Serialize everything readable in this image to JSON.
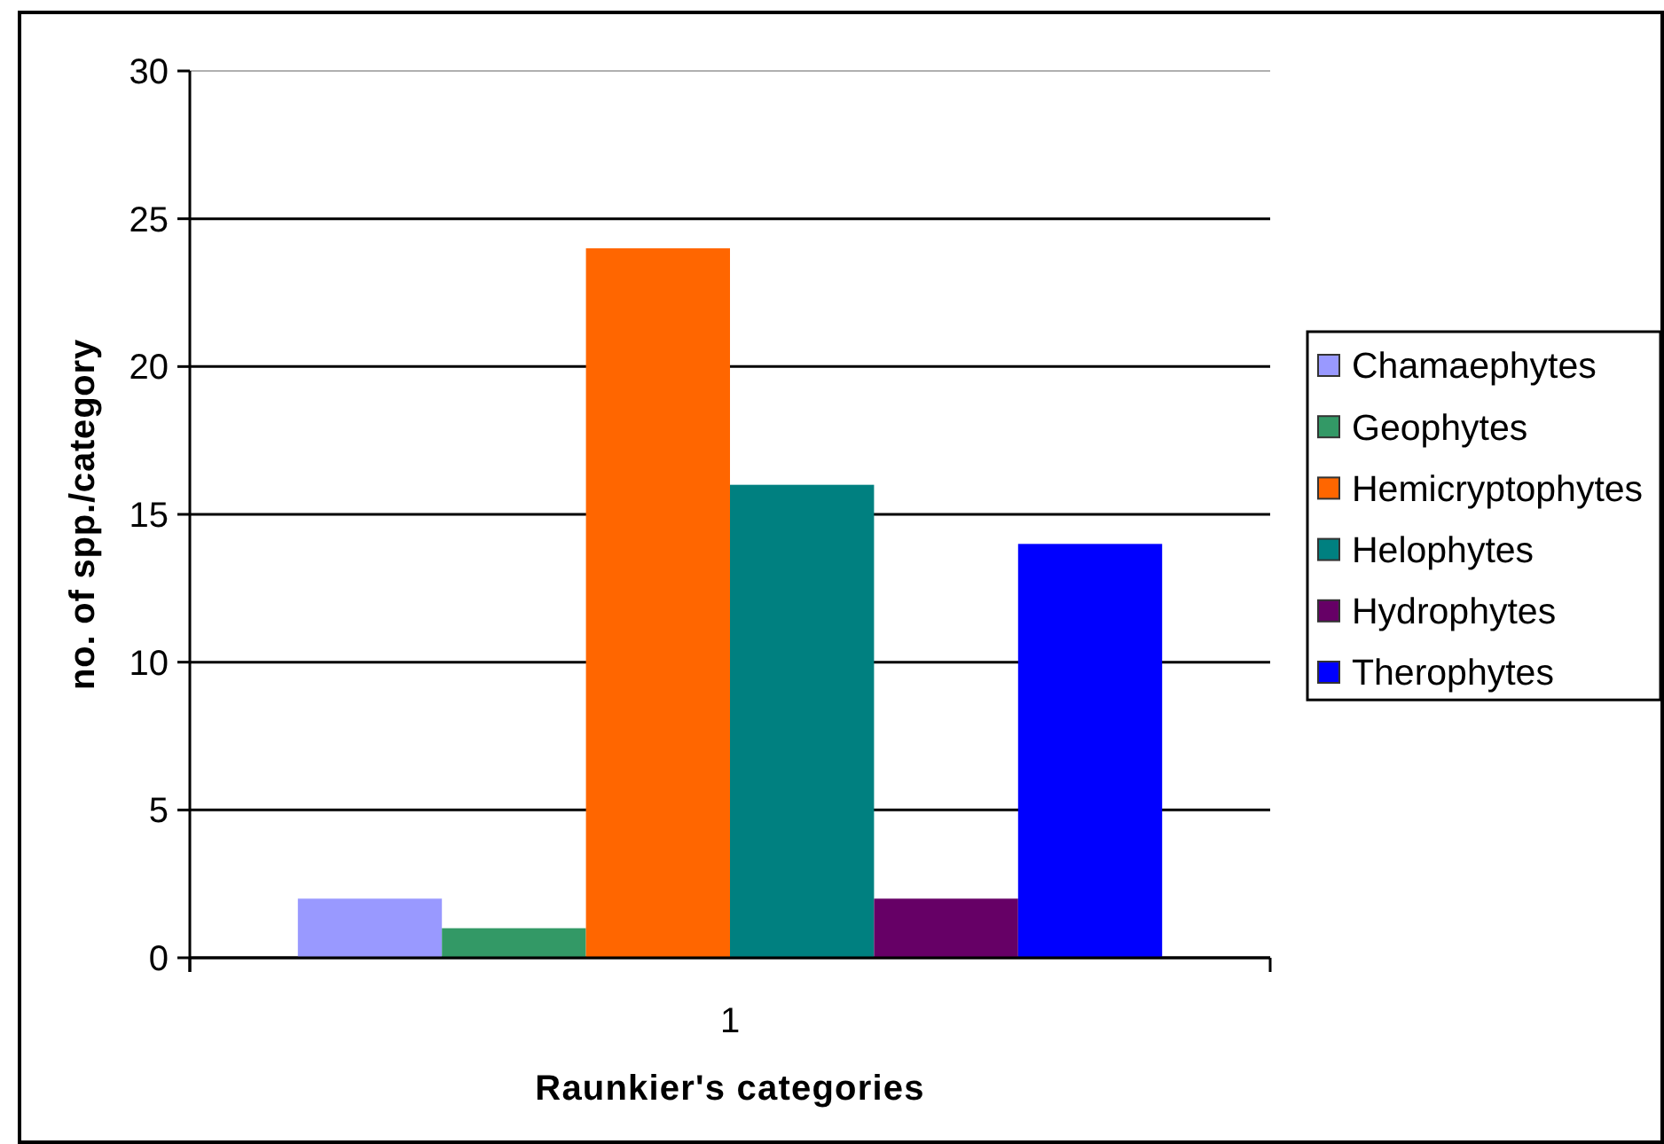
{
  "chart_data": {
    "type": "bar",
    "xlabel": "Raunkier's categories",
    "ylabel": "no. of spp./category",
    "categories": [
      "1"
    ],
    "series": [
      {
        "name": "Chamaephytes",
        "color": "#9999ff",
        "values": [
          2
        ]
      },
      {
        "name": "Geophytes",
        "color": "#339966",
        "values": [
          1
        ]
      },
      {
        "name": "Hemicryptophytes",
        "color": "#ff6600",
        "values": [
          24
        ]
      },
      {
        "name": "Helophytes",
        "color": "#008080",
        "values": [
          16
        ]
      },
      {
        "name": "Hydrophytes",
        "color": "#660066",
        "values": [
          2
        ]
      },
      {
        "name": "Therophytes",
        "color": "#0000ff",
        "values": [
          14
        ]
      }
    ],
    "ylim": [
      0,
      30
    ],
    "yticks": [
      0,
      5,
      10,
      15,
      20,
      25,
      30
    ],
    "grid": "y",
    "legend": "right"
  }
}
